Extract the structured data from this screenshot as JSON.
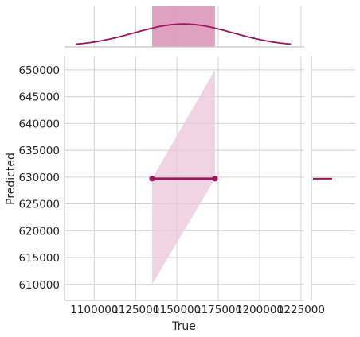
{
  "chart_data": {
    "type": "scatter",
    "subtype": "jointplot-regression",
    "xlabel": "True",
    "ylabel": "Predicted",
    "xlim": [
      1082000,
      1227000
    ],
    "ylim": [
      607000,
      652500
    ],
    "x_ticks": [
      1100000,
      1125000,
      1150000,
      1175000,
      1200000,
      1225000
    ],
    "y_ticks": [
      610000,
      615000,
      620000,
      625000,
      630000,
      635000,
      640000,
      645000,
      650000
    ],
    "points": [
      {
        "x": 1135000,
        "y": 629700
      },
      {
        "x": 1173000,
        "y": 629700
      }
    ],
    "regression_line": {
      "x": [
        1135000,
        1173000
      ],
      "y": [
        629700,
        629700
      ]
    },
    "confidence_band": {
      "x": [
        1135000,
        1173000
      ],
      "lower": [
        610000,
        629700
      ],
      "upper": [
        629700,
        650000
      ]
    },
    "marginal_x": {
      "histogram": [
        {
          "x0": 1135000,
          "x1": 1173000,
          "density": 1.0
        }
      ],
      "kde": {
        "x_range": [
          1089000,
          1219000
        ],
        "peak_x": 1154000,
        "peak_density": 0.55
      }
    },
    "marginal_y": {
      "kde_at_y": 629700
    },
    "colors": {
      "accent": "#a0135e",
      "band": "#ecc5d9",
      "hist": "#dd9cbd",
      "grid": "#d2d2d2",
      "spine": "#c8c8c8"
    },
    "grid": true
  }
}
